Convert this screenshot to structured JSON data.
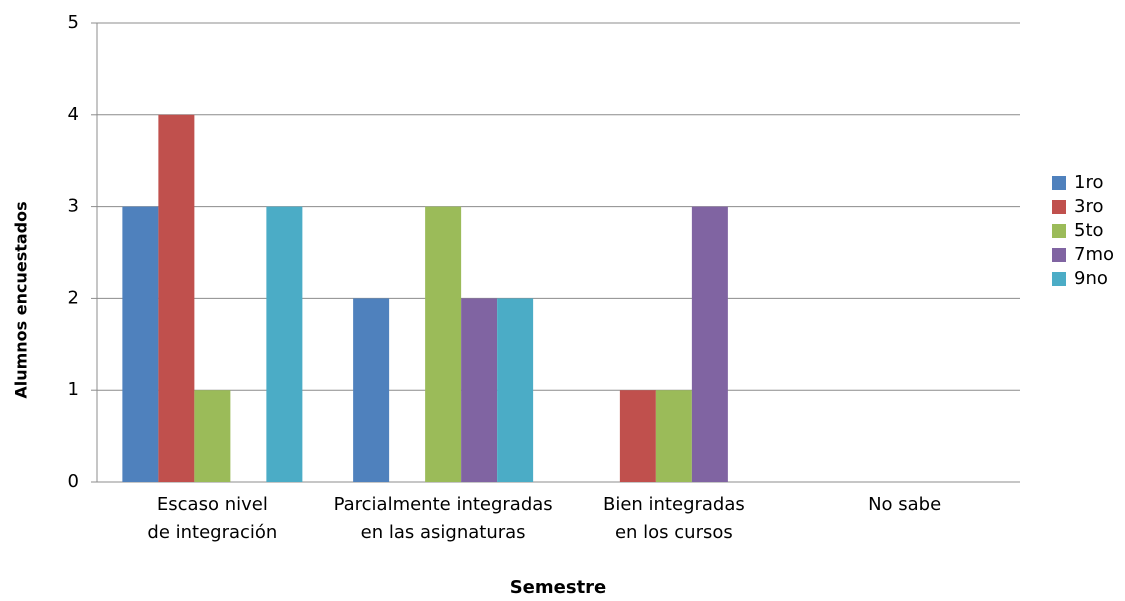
{
  "chart_data": {
    "type": "bar",
    "x_label": "Semestre",
    "y_label": "Alumnos encuestados",
    "categories": [
      [
        "Escaso nivel",
        "de integración"
      ],
      [
        "Parcialmente integradas",
        "en las asignaturas"
      ],
      [
        "Bien integradas",
        "en los cursos"
      ],
      [
        "No sabe"
      ]
    ],
    "series": [
      {
        "name": "1ro",
        "color": "#4f81bd",
        "values": [
          3,
          2,
          0,
          0
        ]
      },
      {
        "name": "3ro",
        "color": "#c0504d",
        "values": [
          4,
          0,
          1,
          0
        ]
      },
      {
        "name": "5to",
        "color": "#9bbb59",
        "values": [
          1,
          3,
          1,
          0
        ]
      },
      {
        "name": "7mo",
        "color": "#8064a2",
        "values": [
          0,
          2,
          3,
          0
        ]
      },
      {
        "name": "9no",
        "color": "#4bacc6",
        "values": [
          3,
          2,
          0,
          0
        ]
      }
    ],
    "ylim": [
      0,
      5
    ],
    "yticks": [
      0,
      1,
      2,
      3,
      4,
      5
    ],
    "grid": true,
    "legend": "right"
  }
}
